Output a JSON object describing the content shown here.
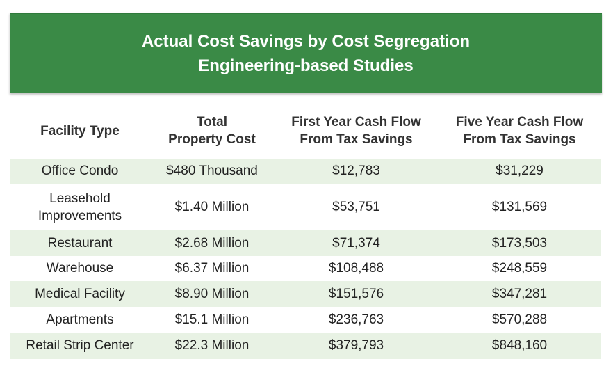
{
  "title": {
    "line1": "Actual Cost Savings by Cost Segregation",
    "line2": "Engineering-based Studies"
  },
  "headers": {
    "col1": "Facility Type",
    "col2_line1": "Total",
    "col2_line2": "Property Cost",
    "col3_line1": "First Year Cash Flow",
    "col3_line2": "From Tax Savings",
    "col4_line1": "Five Year Cash Flow",
    "col4_line2": "From Tax Savings"
  },
  "rows": [
    {
      "type_line1": "Office Condo",
      "type_line2": "",
      "cost": "$480 Thousand",
      "first": "$12,783",
      "five": "$31,229"
    },
    {
      "type_line1": "Leasehold",
      "type_line2": "Improvements",
      "cost": "$1.40 Million",
      "first": "$53,751",
      "five": "$131,569"
    },
    {
      "type_line1": "Restaurant",
      "type_line2": "",
      "cost": "$2.68 Million",
      "first": "$71,374",
      "five": "$173,503"
    },
    {
      "type_line1": "Warehouse",
      "type_line2": "",
      "cost": "$6.37 Million",
      "first": "$108,488",
      "five": "$248,559"
    },
    {
      "type_line1": "Medical Facility",
      "type_line2": "",
      "cost": "$8.90 Million",
      "first": "$151,576",
      "five": "$347,281"
    },
    {
      "type_line1": "Apartments",
      "type_line2": "",
      "cost": "$15.1 Million",
      "first": "$236,763",
      "five": "$570,288"
    },
    {
      "type_line1": "Retail Strip Center",
      "type_line2": "",
      "cost": "$22.3 Million",
      "first": "$379,793",
      "five": "$848,160"
    }
  ],
  "colors": {
    "banner": "#3a8a46",
    "row_shade": "#e8f2e4"
  }
}
